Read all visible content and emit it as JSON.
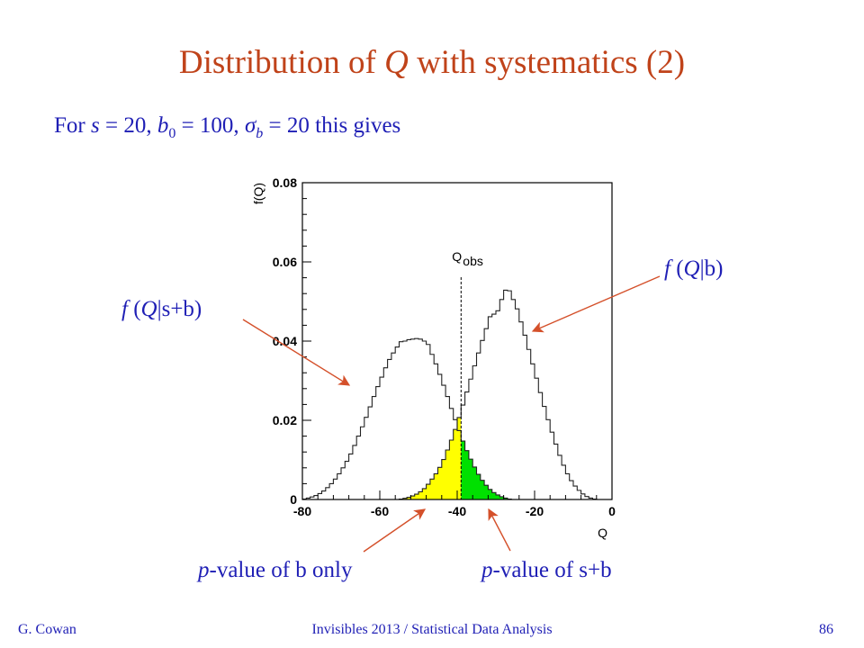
{
  "slide": {
    "title_pre": "Distribution of ",
    "title_var": "Q",
    "title_post": " with systematics (2)",
    "subtitle": {
      "t1": "For ",
      "s": "s",
      "t2": " = 20, ",
      "b": "b",
      "b_sub": "0",
      "t3": " = 100, ",
      "sigma": "σ",
      "sigma_sub": "b",
      "t4": " = 20 this gives"
    },
    "callouts": {
      "fsb": {
        "f": "f",
        "open": " (",
        "q": "Q",
        "rest": "|s+b)"
      },
      "fb": {
        "f": "f",
        "open": " (",
        "q": "Q",
        "rest": "|b)"
      },
      "pb": {
        "p": "p",
        "rest": "-value of b only"
      },
      "psb": {
        "p": "p",
        "rest": "-value of s+b"
      }
    },
    "footer": {
      "author": "G. Cowan",
      "center": "Invisibles 2013 / Statistical Data Analysis",
      "page": "86"
    }
  },
  "colors": {
    "title": "#c0431a",
    "text": "#1f1fb5",
    "arrow": "#d4502a",
    "yellow": "#ffff00",
    "green": "#00e000"
  },
  "chart_data": {
    "type": "histogram",
    "xlabel": "Q",
    "ylabel": "f(Q)",
    "xlim": [
      -80,
      0
    ],
    "ylim": [
      0,
      0.08
    ],
    "x_ticks": [
      -80,
      -60,
      -40,
      -20,
      0
    ],
    "y_ticks": [
      0,
      0.02,
      0.04,
      0.06,
      0.08
    ],
    "y_tick_labels": [
      "0",
      "0.02",
      "0.04",
      "0.06",
      "0.08"
    ],
    "q_obs": -39,
    "q_obs_label": "Q",
    "q_obs_sub": "obs",
    "bin_width": 1,
    "series": [
      {
        "name": "f(Q|s+b)",
        "peak": 0.0415,
        "points": [
          [
            -80,
            0.0
          ],
          [
            -79,
            0.0002
          ],
          [
            -77,
            0.0008
          ],
          [
            -76,
            0.0012
          ],
          [
            -75,
            0.0018
          ],
          [
            -74,
            0.0025
          ],
          [
            -73,
            0.0035
          ],
          [
            -72,
            0.0045
          ],
          [
            -71,
            0.0058
          ],
          [
            -70,
            0.0072
          ],
          [
            -69,
            0.0088
          ],
          [
            -68,
            0.0105
          ],
          [
            -67,
            0.0125
          ],
          [
            -66,
            0.0148
          ],
          [
            -65,
            0.0172
          ],
          [
            -64,
            0.0195
          ],
          [
            -63,
            0.022
          ],
          [
            -62,
            0.0248
          ],
          [
            -61,
            0.0272
          ],
          [
            -60,
            0.0298
          ],
          [
            -59,
            0.032
          ],
          [
            -58,
            0.0345
          ],
          [
            -57,
            0.0362
          ],
          [
            -56,
            0.0378
          ],
          [
            -55,
            0.0392
          ],
          [
            -54,
            0.0405
          ],
          [
            -53,
            0.0395
          ],
          [
            -52,
            0.0412
          ],
          [
            -51,
            0.0398
          ],
          [
            -50,
            0.0415
          ],
          [
            -49,
            0.0395
          ],
          [
            -48,
            0.0405
          ],
          [
            -47,
            0.0378
          ],
          [
            -46,
            0.0355
          ],
          [
            -45,
            0.033
          ],
          [
            -44,
            0.0302
          ],
          [
            -43,
            0.0275
          ],
          [
            -42,
            0.0245
          ],
          [
            -41,
            0.0215
          ],
          [
            -40,
            0.0188
          ],
          [
            -39,
            0.016
          ],
          [
            -38,
            0.0135
          ],
          [
            -37,
            0.0112
          ],
          [
            -36,
            0.0092
          ],
          [
            -35,
            0.0072
          ],
          [
            -34,
            0.0055
          ],
          [
            -33,
            0.0042
          ],
          [
            -32,
            0.003
          ],
          [
            -31,
            0.0021
          ],
          [
            -30,
            0.0014
          ],
          [
            -29,
            0.0009
          ],
          [
            -28,
            0.0005
          ],
          [
            -27,
            0.0002
          ],
          [
            -26,
            0.0
          ]
        ]
      },
      {
        "name": "f(Q|b)",
        "peak": 0.0542,
        "points": [
          [
            -55,
            0.0
          ],
          [
            -54,
            0.0002
          ],
          [
            -53,
            0.0004
          ],
          [
            -52,
            0.0007
          ],
          [
            -51,
            0.0011
          ],
          [
            -50,
            0.0016
          ],
          [
            -49,
            0.0023
          ],
          [
            -48,
            0.0032
          ],
          [
            -47,
            0.0045
          ],
          [
            -46,
            0.0058
          ],
          [
            -45,
            0.0072
          ],
          [
            -44,
            0.009
          ],
          [
            -43,
            0.0112
          ],
          [
            -42,
            0.0138
          ],
          [
            -41,
            0.0162
          ],
          [
            -40,
            0.0192
          ],
          [
            -39,
            0.0222
          ],
          [
            -38,
            0.0255
          ],
          [
            -37,
            0.0288
          ],
          [
            -36,
            0.032
          ],
          [
            -35,
            0.0355
          ],
          [
            -34,
            0.0385
          ],
          [
            -33,
            0.0418
          ],
          [
            -32,
            0.0445
          ],
          [
            -31,
            0.0478
          ],
          [
            -30,
            0.0458
          ],
          [
            -29,
            0.0495
          ],
          [
            -28,
            0.0515
          ],
          [
            -27,
            0.0542
          ],
          [
            -26,
            0.0512
          ],
          [
            -25,
            0.0498
          ],
          [
            -24,
            0.0465
          ],
          [
            -23,
            0.0432
          ],
          [
            -22,
            0.0398
          ],
          [
            -21,
            0.036
          ],
          [
            -20,
            0.0325
          ],
          [
            -19,
            0.0288
          ],
          [
            -18,
            0.0252
          ],
          [
            -17,
            0.0218
          ],
          [
            -16,
            0.0185
          ],
          [
            -15,
            0.0155
          ],
          [
            -14,
            0.0125
          ],
          [
            -13,
            0.0098
          ],
          [
            -12,
            0.0075
          ],
          [
            -11,
            0.0055
          ],
          [
            -10,
            0.004
          ],
          [
            -9,
            0.0028
          ],
          [
            -8,
            0.0018
          ],
          [
            -7,
            0.001
          ],
          [
            -6,
            0.0005
          ],
          [
            -5,
            0.0002
          ],
          [
            -4,
            0.0
          ]
        ]
      }
    ],
    "shaded_regions": [
      {
        "name": "p-value of b only",
        "of_series": "f(Q|b)",
        "from": -80,
        "to": -39,
        "color": "#ffff00"
      },
      {
        "name": "p-value of s+b",
        "of_series": "f(Q|s+b)",
        "from": -39,
        "to": 0,
        "color": "#00e000"
      }
    ]
  }
}
